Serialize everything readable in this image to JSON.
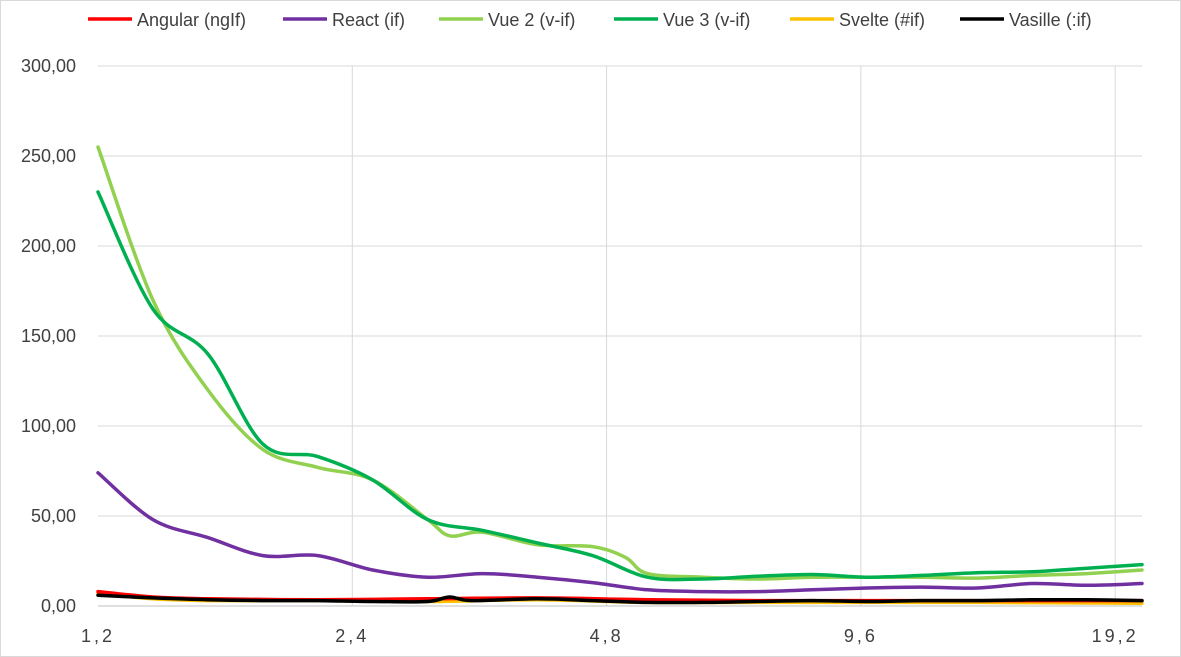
{
  "chart_data": {
    "type": "line",
    "categories": [
      "1,2",
      "2,4",
      "4,8",
      "9,6",
      "19,2"
    ],
    "ylim": [
      0,
      300
    ],
    "y_ticks": [
      "0,00",
      "50,00",
      "100,00",
      "150,00",
      "200,00",
      "250,00",
      "300,00"
    ],
    "x_ticks": [
      "1,2",
      "2,4",
      "4,8",
      "9,6",
      "19,2"
    ],
    "grid": true,
    "legend_position": "top",
    "series": [
      {
        "name": "Angular (ngIf)",
        "color": "#ff0000",
        "points": [
          [
            0.0,
            8
          ],
          [
            0.25,
            5
          ],
          [
            0.5,
            4
          ],
          [
            1.0,
            3.5
          ],
          [
            1.5,
            4
          ],
          [
            2.0,
            4.5
          ],
          [
            2.5,
            3.5
          ],
          [
            3.0,
            3
          ],
          [
            3.5,
            3
          ],
          [
            4.0,
            3
          ],
          [
            4.75,
            3
          ]
        ]
      },
      {
        "name": "React (if)",
        "color": "#7030a0",
        "points": [
          [
            0.0,
            74
          ],
          [
            0.25,
            48
          ],
          [
            0.5,
            38
          ],
          [
            0.75,
            28
          ],
          [
            1.0,
            28
          ],
          [
            1.25,
            20
          ],
          [
            1.5,
            16
          ],
          [
            1.75,
            18
          ],
          [
            2.0,
            16
          ],
          [
            2.25,
            13
          ],
          [
            2.5,
            9
          ],
          [
            2.75,
            8
          ],
          [
            3.0,
            8
          ],
          [
            3.25,
            9
          ],
          [
            3.5,
            10
          ],
          [
            3.75,
            10.5
          ],
          [
            4.0,
            10
          ],
          [
            4.25,
            12.5
          ],
          [
            4.5,
            11.5
          ],
          [
            4.75,
            12.5
          ]
        ]
      },
      {
        "name": "Vue 2 (v-if)",
        "color": "#92d050",
        "points": [
          [
            0.0,
            255
          ],
          [
            0.25,
            170
          ],
          [
            0.5,
            120
          ],
          [
            0.75,
            87
          ],
          [
            1.0,
            77
          ],
          [
            1.25,
            70
          ],
          [
            1.5,
            48
          ],
          [
            1.6,
            39
          ],
          [
            1.75,
            41
          ],
          [
            2.0,
            34
          ],
          [
            2.25,
            33
          ],
          [
            2.4,
            27
          ],
          [
            2.5,
            18
          ],
          [
            2.75,
            16
          ],
          [
            3.0,
            15
          ],
          [
            3.25,
            16
          ],
          [
            3.5,
            16
          ],
          [
            3.75,
            16
          ],
          [
            4.0,
            15.5
          ],
          [
            4.25,
            17
          ],
          [
            4.5,
            18
          ],
          [
            4.75,
            20
          ]
        ]
      },
      {
        "name": "Vue 3 (v-if)",
        "color": "#00b050",
        "points": [
          [
            0.0,
            230
          ],
          [
            0.25,
            165
          ],
          [
            0.5,
            140
          ],
          [
            0.75,
            90
          ],
          [
            1.0,
            83
          ],
          [
            1.25,
            70
          ],
          [
            1.5,
            48
          ],
          [
            1.75,
            42
          ],
          [
            2.0,
            35
          ],
          [
            2.25,
            28
          ],
          [
            2.5,
            16
          ],
          [
            2.75,
            15
          ],
          [
            3.0,
            16.5
          ],
          [
            3.25,
            17.5
          ],
          [
            3.5,
            16
          ],
          [
            3.75,
            17
          ],
          [
            4.0,
            18.5
          ],
          [
            4.25,
            19
          ],
          [
            4.5,
            21
          ],
          [
            4.75,
            23
          ]
        ]
      },
      {
        "name": "Svelte (#if)",
        "color": "#ffc000",
        "points": [
          [
            0.0,
            7
          ],
          [
            0.25,
            4
          ],
          [
            0.5,
            3
          ],
          [
            1.0,
            3
          ],
          [
            1.5,
            2.5
          ],
          [
            2.0,
            3.5
          ],
          [
            2.5,
            2
          ],
          [
            3.0,
            2
          ],
          [
            3.5,
            2
          ],
          [
            4.0,
            2
          ],
          [
            4.75,
            1.5
          ]
        ]
      },
      {
        "name": "Vasille (:if)",
        "color": "#000000",
        "points": [
          [
            0.0,
            6
          ],
          [
            0.25,
            4.5
          ],
          [
            0.5,
            3.5
          ],
          [
            0.75,
            3
          ],
          [
            1.0,
            3
          ],
          [
            1.25,
            2.5
          ],
          [
            1.5,
            2.5
          ],
          [
            1.6,
            5
          ],
          [
            1.7,
            3
          ],
          [
            2.0,
            4
          ],
          [
            2.25,
            3
          ],
          [
            2.5,
            2
          ],
          [
            2.75,
            2
          ],
          [
            3.0,
            2.5
          ],
          [
            3.25,
            3
          ],
          [
            3.5,
            2.5
          ],
          [
            3.75,
            3
          ],
          [
            4.0,
            3
          ],
          [
            4.25,
            3.5
          ],
          [
            4.5,
            3.5
          ],
          [
            4.75,
            3
          ]
        ]
      }
    ]
  }
}
